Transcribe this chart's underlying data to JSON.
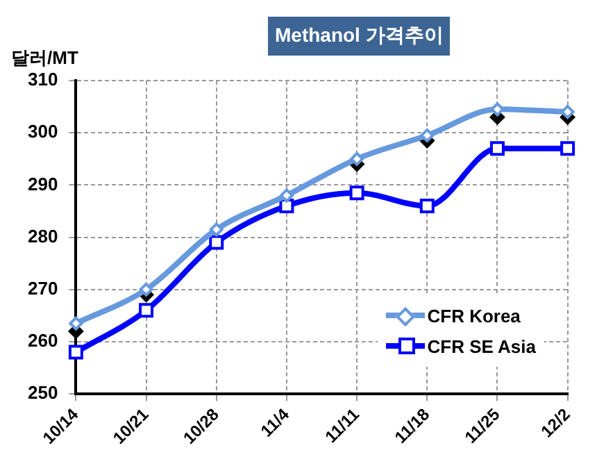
{
  "chart_data": {
    "type": "line",
    "title": "Methanol 가격추이",
    "ylabel": "달러/MT",
    "categories": [
      "10/14",
      "10/21",
      "10/28",
      "11/4",
      "11/11",
      "11/18",
      "11/25",
      "12/2"
    ],
    "ylim": [
      250,
      310
    ],
    "yticks": [
      250,
      260,
      270,
      280,
      290,
      300,
      310
    ],
    "grid": true,
    "legend": "bottom right",
    "series": [
      {
        "name": "CFR Korea",
        "color": "#6699dd",
        "marker": "diamond",
        "values": [
          263.5,
          270,
          281.5,
          288,
          295,
          299.5,
          304.5,
          304
        ]
      },
      {
        "name": "CFR SE Asia",
        "color": "#0000ff",
        "marker": "square",
        "values": [
          258,
          266,
          279,
          286,
          288.5,
          286,
          297,
          297
        ]
      },
      {
        "type": "scatter",
        "color": "#000000",
        "marker": "diamond",
        "values": [
          262,
          269,
          null,
          null,
          294,
          298.5,
          303,
          303
        ]
      }
    ]
  }
}
